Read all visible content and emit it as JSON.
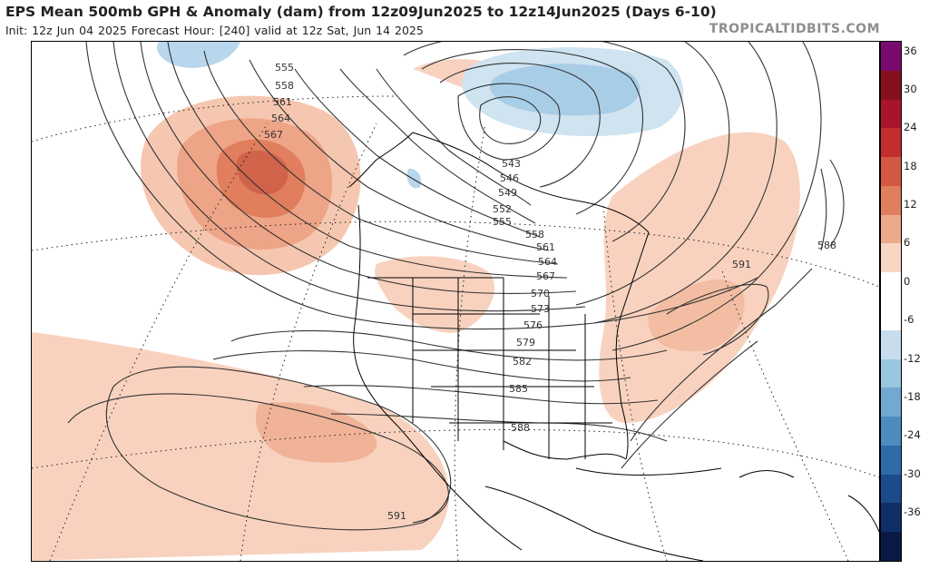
{
  "header": {
    "title": "EPS Mean 500mb GPH & Anomaly (dam) from 12z09Jun2025 to 12z14Jun2025 (Days 6-10)",
    "subtitle": "Init: 12z Jun 04 2025   Forecast Hour: [240]   valid at 12z Sat, Jun 14 2025",
    "brand": "TROPICALTIDBITS.COM"
  },
  "colorbar": {
    "ticks": [
      "36",
      "30",
      "24",
      "18",
      "12",
      "6",
      "0",
      "-6",
      "-12",
      "-18",
      "-24",
      "-30",
      "-36"
    ],
    "colors": [
      "#7b0a6e",
      "#86101c",
      "#a8152a",
      "#c22d30",
      "#d45842",
      "#e07e5d",
      "#ecaa8c",
      "#f7d6c4",
      "#ffffff",
      "#ffffff",
      "#c7ddee",
      "#9bc6e0",
      "#71a9d1",
      "#4d8cc1",
      "#2f6aa9",
      "#1c4b8b",
      "#0f2f67",
      "#0b1a44"
    ],
    "scale": "dam anomaly",
    "warm_color": "#f3b59a",
    "cold_color": "#a7cde6"
  },
  "map": {
    "contour_labels": [
      "555",
      "558",
      "561",
      "564",
      "567",
      "543",
      "546",
      "549",
      "552",
      "555",
      "558",
      "561",
      "564",
      "567",
      "570",
      "573",
      "576",
      "579",
      "582",
      "585",
      "588",
      "591",
      "588",
      "591",
      "591"
    ]
  }
}
